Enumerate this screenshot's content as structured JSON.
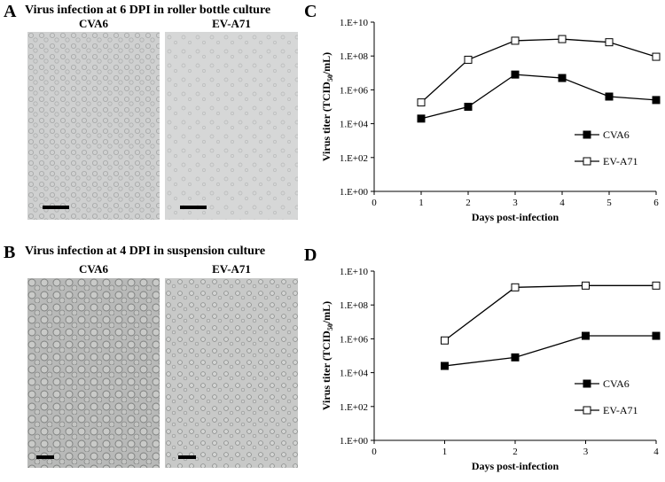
{
  "panels": {
    "A": {
      "letter": "A",
      "title": "Virus infection at 6 DPI in roller bottle culture",
      "left_label": "CVA6",
      "right_label": "EV-A71"
    },
    "B": {
      "letter": "B",
      "title": "Virus infection at 4 DPI in suspension culture",
      "left_label": "CVA6",
      "right_label": "EV-A71"
    },
    "C": {
      "letter": "C"
    },
    "D": {
      "letter": "D"
    }
  },
  "chart_data": [
    {
      "panel": "C",
      "type": "line",
      "xlabel": "Days post-infection",
      "ylabel_prefix": "Virus titer (TCID",
      "ylabel_sub": "50",
      "ylabel_suffix": "/mL)",
      "xlim": [
        0,
        6
      ],
      "xticks": [
        "0",
        "1",
        "2",
        "3",
        "4",
        "5",
        "6"
      ],
      "ylog_range": [
        0,
        10
      ],
      "yticks": [
        "1.E+00",
        "1.E+02",
        "1.E+04",
        "1.E+06",
        "1.E+08",
        "1.E+10"
      ],
      "x": [
        1,
        2,
        3,
        4,
        5,
        6
      ],
      "series": [
        {
          "name": "CVA6",
          "marker": "filled-square",
          "values": [
            20000,
            100000,
            8000000,
            5000000,
            400000,
            250000
          ]
        },
        {
          "name": "EV-A71",
          "marker": "open-square",
          "values": [
            180000,
            60000000,
            800000000,
            1000000000,
            650000000,
            90000000
          ]
        }
      ],
      "legend": "right"
    },
    {
      "panel": "D",
      "type": "line",
      "xlabel": "Days post-infection",
      "ylabel_prefix": "Virus titer (TCID",
      "ylabel_sub": "50",
      "ylabel_suffix": "/mL)",
      "xlim": [
        0,
        4
      ],
      "xticks": [
        "0",
        "1",
        "2",
        "3",
        "4"
      ],
      "ylog_range": [
        0,
        10
      ],
      "yticks": [
        "1.E+00",
        "1.E+02",
        "1.E+04",
        "1.E+06",
        "1.E+08",
        "1.E+10"
      ],
      "x": [
        1,
        2,
        3,
        4
      ],
      "series": [
        {
          "name": "CVA6",
          "marker": "filled-square",
          "values": [
            25000,
            80000,
            1500000,
            1500000
          ]
        },
        {
          "name": "EV-A71",
          "marker": "open-square",
          "values": [
            800000,
            1100000000,
            1400000000,
            1400000000
          ]
        }
      ],
      "legend": "right"
    }
  ]
}
